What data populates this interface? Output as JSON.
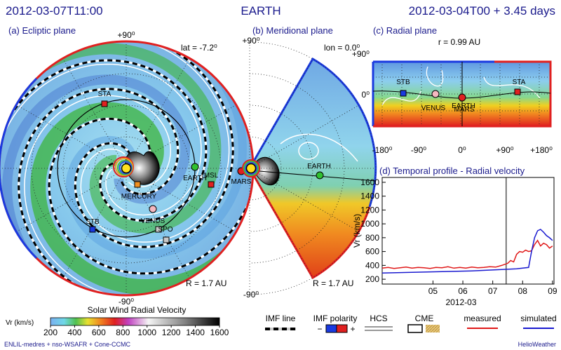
{
  "header": {
    "left": "2012-03-07T11:00",
    "center": "EARTH",
    "right": "2012-03-04T00 + 3.45 days"
  },
  "ecliptic": {
    "title": "(a) Ecliptic plane",
    "top": "+90⁰",
    "bottom": "-90⁰",
    "lat": "lat = -7.2⁰",
    "radius": "R = 1.7 AU",
    "bodies": [
      "STA",
      "STB",
      "EARTH",
      "MSL",
      "MARS",
      "MERCURY",
      "VENUS",
      "SPO"
    ]
  },
  "meridional": {
    "title": "(b) Meridional plane",
    "top": "+90⁰",
    "bottom": "-90⁰",
    "lon": "lon = 0.0⁰",
    "radius": "R = 1.7 AU",
    "bodies": [
      "EARTH"
    ]
  },
  "radial": {
    "title": "(c) Radial plane",
    "r": "r = 0.99 AU",
    "yticks": [
      "+90⁰",
      "0⁰"
    ],
    "xticks": [
      "-180⁰",
      "-90⁰",
      "0⁰",
      "+90⁰",
      "+180⁰"
    ],
    "bodies": [
      "STB",
      "VENUS",
      "EARTH",
      "MARS",
      "STA"
    ]
  },
  "chart_data": {
    "type": "line",
    "title": "(d) Temporal profile - Radial velocity",
    "ylabel": "Vr (km/s)",
    "xlabel": "2012-03",
    "xlim": [
      3.3,
      9.05
    ],
    "xticks": [
      {
        "value": 5,
        "label": "05"
      },
      {
        "value": 6,
        "label": "06"
      },
      {
        "value": 7,
        "label": "07"
      },
      {
        "value": 8,
        "label": "08"
      },
      {
        "value": 9,
        "label": "09"
      }
    ],
    "ylim": [
      130,
      1670
    ],
    "yticks": [
      200,
      400,
      600,
      800,
      1000,
      1200,
      1400,
      1600
    ],
    "time_marker": 7.45,
    "series": [
      {
        "name": "measured",
        "color": "#e01818",
        "x": [
          3.3,
          3.5,
          3.7,
          3.9,
          4.1,
          4.3,
          4.5,
          4.7,
          4.9,
          5.1,
          5.3,
          5.5,
          5.7,
          5.9,
          6.1,
          6.3,
          6.5,
          6.7,
          6.9,
          7.1,
          7.3,
          7.5,
          7.6,
          7.7,
          7.8,
          7.9,
          8.0,
          8.1,
          8.2,
          8.3,
          8.4,
          8.5,
          8.6,
          8.7,
          8.8,
          8.9,
          9.0
        ],
        "values": [
          360,
          370,
          355,
          365,
          375,
          360,
          370,
          365,
          355,
          370,
          365,
          380,
          360,
          370,
          360,
          375,
          365,
          370,
          380,
          375,
          400,
          430,
          470,
          450,
          560,
          600,
          590,
          620,
          600,
          610,
          700,
          760,
          680,
          720,
          700,
          650,
          680
        ]
      },
      {
        "name": "simulated",
        "color": "#1a1ad0",
        "x": [
          3.3,
          3.8,
          4.3,
          4.8,
          5.3,
          5.8,
          6.3,
          6.8,
          7.3,
          7.8,
          8.0,
          8.2,
          8.3,
          8.4,
          8.5,
          8.6,
          8.7,
          8.8,
          8.9,
          9.0
        ],
        "values": [
          290,
          295,
          300,
          305,
          310,
          315,
          320,
          330,
          340,
          350,
          360,
          370,
          600,
          800,
          900,
          920,
          880,
          830,
          800,
          760
        ]
      }
    ]
  },
  "colorbar": {
    "title": "Solar Wind Radial Velocity",
    "label": "Vr (km/s)",
    "lim": [
      200,
      1600
    ],
    "ticks": [
      200,
      400,
      600,
      800,
      1000,
      1200,
      1400,
      1600
    ]
  },
  "legend": {
    "imf_line": "IMF line",
    "imf_polarity": "IMF polarity",
    "minus": "−",
    "plus": "+",
    "hcs": "HCS",
    "cme": "CME"
  },
  "footer": {
    "left": "ENLIL-medres + nso-WSAFR + Cone-CCMC",
    "right": "HelioWeather"
  }
}
